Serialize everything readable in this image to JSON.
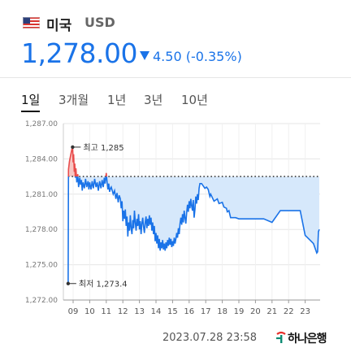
{
  "header": {
    "country": "미국",
    "currency": "USD",
    "price": "1,278.00",
    "change_value": "4.50",
    "change_percent": "(-0.35%)"
  },
  "tabs": [
    {
      "label": "1일",
      "active": true
    },
    {
      "label": "3개월",
      "active": false
    },
    {
      "label": "1년",
      "active": false
    },
    {
      "label": "3년",
      "active": false
    },
    {
      "label": "10년",
      "active": false
    }
  ],
  "chart_data": {
    "type": "line",
    "ylim": [
      1272.0,
      1287.0
    ],
    "yticks": [
      "1,287.00",
      "1,284.00",
      "1,281.00",
      "1,278.00",
      "1,275.00",
      "1,272.00"
    ],
    "xticks": [
      "09",
      "10",
      "11",
      "12",
      "13",
      "14",
      "15",
      "16",
      "17",
      "18",
      "19",
      "20",
      "21",
      "22",
      "23"
    ],
    "reference_value": 1282.5,
    "high_label": "최고 1,285",
    "low_label": "최저 1,273.4",
    "x_start": 8.7,
    "x_end": 23.85,
    "series": [
      {
        "points": [
          [
            8.7,
            1273.4
          ],
          [
            8.72,
            1283.1
          ],
          [
            8.78,
            1283.8
          ],
          [
            8.85,
            1284.3
          ],
          [
            8.92,
            1284.8
          ],
          [
            8.97,
            1285.0
          ],
          [
            9.0,
            1283.7
          ],
          [
            9.03,
            1284.4
          ],
          [
            9.07,
            1282.9
          ],
          [
            9.1,
            1283.6
          ],
          [
            9.13,
            1282.4
          ],
          [
            9.17,
            1283.2
          ],
          [
            9.22,
            1282.0
          ],
          [
            9.28,
            1282.7
          ],
          [
            9.33,
            1281.6
          ],
          [
            9.4,
            1282.4
          ],
          [
            9.45,
            1281.8
          ],
          [
            9.5,
            1282.2
          ],
          [
            9.55,
            1281.3
          ],
          [
            9.6,
            1282.0
          ],
          [
            9.68,
            1281.5
          ],
          [
            9.75,
            1282.3
          ],
          [
            9.82,
            1281.6
          ],
          [
            9.9,
            1282.1
          ],
          [
            9.95,
            1281.4
          ],
          [
            10.0,
            1282.0
          ],
          [
            10.08,
            1281.4
          ],
          [
            10.15,
            1282.1
          ],
          [
            10.22,
            1281.5
          ],
          [
            10.3,
            1282.3
          ],
          [
            10.38,
            1281.6
          ],
          [
            10.45,
            1282.0
          ],
          [
            10.52,
            1281.3
          ],
          [
            10.6,
            1282.1
          ],
          [
            10.68,
            1281.5
          ],
          [
            10.75,
            1282.2
          ],
          [
            10.82,
            1281.6
          ],
          [
            10.88,
            1282.4
          ],
          [
            10.93,
            1281.9
          ],
          [
            11.0,
            1282.8
          ],
          [
            11.05,
            1282.0
          ],
          [
            11.1,
            1281.4
          ],
          [
            11.15,
            1281.9
          ],
          [
            11.2,
            1281.2
          ],
          [
            11.26,
            1281.5
          ],
          [
            11.3,
            1281.6
          ],
          [
            11.42,
            1281.0
          ],
          [
            11.5,
            1281.3
          ],
          [
            11.58,
            1280.6
          ],
          [
            11.65,
            1281.1
          ],
          [
            11.72,
            1280.3
          ],
          [
            11.78,
            1280.9
          ],
          [
            11.85,
            1280.6
          ],
          [
            11.9,
            1279.8
          ],
          [
            11.95,
            1280.4
          ],
          [
            12.0,
            1278.7
          ],
          [
            12.05,
            1279.6
          ],
          [
            12.1,
            1278.9
          ],
          [
            12.15,
            1279.7
          ],
          [
            12.2,
            1278.3
          ],
          [
            12.25,
            1279.1
          ],
          [
            12.3,
            1277.4
          ],
          [
            12.35,
            1278.6
          ],
          [
            12.4,
            1277.9
          ],
          [
            12.45,
            1279.2
          ],
          [
            12.5,
            1278.1
          ],
          [
            12.55,
            1277.6
          ],
          [
            12.6,
            1278.8
          ],
          [
            12.65,
            1278.1
          ],
          [
            12.7,
            1279.6
          ],
          [
            12.75,
            1278.6
          ],
          [
            12.8,
            1277.9
          ],
          [
            12.85,
            1278.9
          ],
          [
            12.9,
            1278.3
          ],
          [
            12.95,
            1279.3
          ],
          [
            13.0,
            1278.0
          ],
          [
            13.05,
            1278.7
          ],
          [
            13.1,
            1277.6
          ],
          [
            13.15,
            1278.5
          ],
          [
            13.2,
            1279.0
          ],
          [
            13.25,
            1278.2
          ],
          [
            13.3,
            1277.7
          ],
          [
            13.35,
            1278.6
          ],
          [
            13.4,
            1279.1
          ],
          [
            13.45,
            1278.1
          ],
          [
            13.5,
            1278.9
          ],
          [
            13.55,
            1278.3
          ],
          [
            13.6,
            1279.2
          ],
          [
            13.65,
            1278.4
          ],
          [
            13.7,
            1279.0
          ],
          [
            13.75,
            1277.9
          ],
          [
            13.8,
            1278.6
          ],
          [
            13.85,
            1277.6
          ],
          [
            13.9,
            1278.3
          ],
          [
            13.95,
            1277.0
          ],
          [
            14.0,
            1277.7
          ],
          [
            14.05,
            1276.8
          ],
          [
            14.1,
            1277.5
          ],
          [
            14.15,
            1276.4
          ],
          [
            14.2,
            1277.2
          ],
          [
            14.25,
            1276.2
          ],
          [
            14.3,
            1276.9
          ],
          [
            14.35,
            1276.4
          ],
          [
            14.4,
            1277.1
          ],
          [
            14.45,
            1276.3
          ],
          [
            14.5,
            1276.8
          ],
          [
            14.55,
            1276.2
          ],
          [
            14.6,
            1276.9
          ],
          [
            14.65,
            1276.4
          ],
          [
            14.7,
            1277.1
          ],
          [
            14.75,
            1276.6
          ],
          [
            14.8,
            1277.3
          ],
          [
            14.85,
            1276.7
          ],
          [
            14.9,
            1277.2
          ],
          [
            14.95,
            1276.5
          ],
          [
            15.0,
            1277.0
          ],
          [
            15.05,
            1276.6
          ],
          [
            15.1,
            1277.3
          ],
          [
            15.15,
            1276.8
          ],
          [
            15.2,
            1277.2
          ],
          [
            15.25,
            1277.7
          ],
          [
            15.3,
            1277.3
          ],
          [
            15.35,
            1278.1
          ],
          [
            15.4,
            1277.6
          ],
          [
            15.45,
            1278.5
          ],
          [
            15.5,
            1279.0
          ],
          [
            15.55,
            1278.4
          ],
          [
            15.6,
            1279.3
          ],
          [
            15.65,
            1278.6
          ],
          [
            15.7,
            1279.6
          ],
          [
            15.75,
            1279.0
          ],
          [
            15.8,
            1278.5
          ],
          [
            15.85,
            1279.4
          ],
          [
            15.9,
            1280.1
          ],
          [
            15.95,
            1279.5
          ],
          [
            16.0,
            1280.4
          ],
          [
            16.05,
            1279.8
          ],
          [
            16.1,
            1280.6
          ],
          [
            16.15,
            1280.0
          ],
          [
            16.2,
            1279.6
          ],
          [
            16.25,
            1280.5
          ],
          [
            16.3,
            1279.0
          ],
          [
            16.35,
            1279.7
          ],
          [
            16.4,
            1280.8
          ],
          [
            16.45,
            1280.2
          ],
          [
            16.5,
            1281.0
          ],
          [
            16.55,
            1280.5
          ],
          [
            16.6,
            1281.5
          ],
          [
            16.65,
            1281.9
          ],
          [
            16.75,
            1281.9
          ],
          [
            16.85,
            1281.7
          ],
          [
            16.95,
            1281.5
          ],
          [
            17.05,
            1281.6
          ],
          [
            17.15,
            1281.4
          ],
          [
            17.25,
            1280.8
          ],
          [
            17.3,
            1281.0
          ],
          [
            17.5,
            1280.4
          ],
          [
            17.7,
            1280.6
          ],
          [
            17.8,
            1280.2
          ],
          [
            18.0,
            1280.3
          ],
          [
            18.1,
            1279.9
          ],
          [
            18.25,
            1279.8
          ],
          [
            18.3,
            1279.5
          ],
          [
            18.4,
            1279.6
          ],
          [
            18.5,
            1279.0
          ],
          [
            18.8,
            1279.0
          ],
          [
            19.0,
            1278.9
          ],
          [
            19.5,
            1278.9
          ],
          [
            20.0,
            1278.9
          ],
          [
            20.5,
            1278.9
          ],
          [
            21.0,
            1278.6
          ],
          [
            21.5,
            1279.6
          ],
          [
            22.0,
            1279.6
          ],
          [
            22.6,
            1279.6
          ],
          [
            22.7,
            1279.6
          ],
          [
            23.0,
            1277.5
          ],
          [
            23.5,
            1276.8
          ],
          [
            23.7,
            1276.0
          ],
          [
            23.75,
            1276.1
          ],
          [
            23.8,
            1277.8
          ],
          [
            23.85,
            1278.0
          ]
        ]
      }
    ]
  },
  "footer": {
    "timestamp": "2023.07.28 23:58",
    "source": "하나은행"
  },
  "colors": {
    "accent": "#1a73e8",
    "up": "#e84c4c",
    "down_fill": "#d6e8fb",
    "up_fill": "#f7c7c4",
    "grid": "#e6e6e6"
  }
}
